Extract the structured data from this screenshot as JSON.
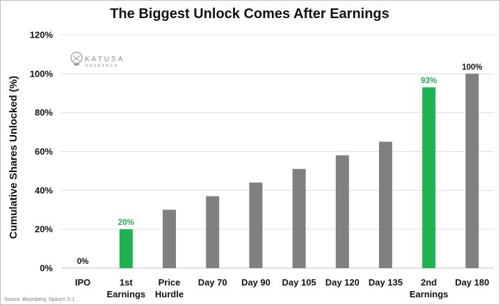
{
  "chart_data": {
    "type": "bar",
    "title": "The Biggest Unlock Comes After Earnings",
    "xlabel": "",
    "ylabel": "Cumulative Shares Unlocked (%)",
    "ylim": [
      0,
      120
    ],
    "yticks": [
      "0%",
      "20%",
      "40%",
      "60%",
      "80%",
      "100%",
      "120%"
    ],
    "grid": "horizontal",
    "legend": "none",
    "categories": [
      [
        "IPO"
      ],
      [
        "1st",
        "Earnings"
      ],
      [
        "Price",
        "Hurdle"
      ],
      [
        "Day 70"
      ],
      [
        "Day 90"
      ],
      [
        "Day 105"
      ],
      [
        "Day 120"
      ],
      [
        "Day 135"
      ],
      [
        "2nd",
        "Earnings"
      ],
      [
        "Day 180"
      ]
    ],
    "values": [
      0,
      20,
      30,
      37,
      44,
      51,
      58,
      65,
      93,
      100
    ],
    "highlight": [
      false,
      true,
      false,
      false,
      false,
      false,
      false,
      false,
      true,
      false
    ],
    "data_labels": [
      "0%",
      "20%",
      "",
      "",
      "",
      "",
      "",
      "",
      "93%",
      "100%"
    ],
    "colors": {
      "default": "#808080",
      "highlight": "#1db350",
      "default_label": "#111111",
      "highlight_label": "#1db350"
    }
  },
  "logo": {
    "name": "KATUSA",
    "sub": "RESEARCH"
  },
  "source": "Source: Bloomberg; SpaceX S-1"
}
